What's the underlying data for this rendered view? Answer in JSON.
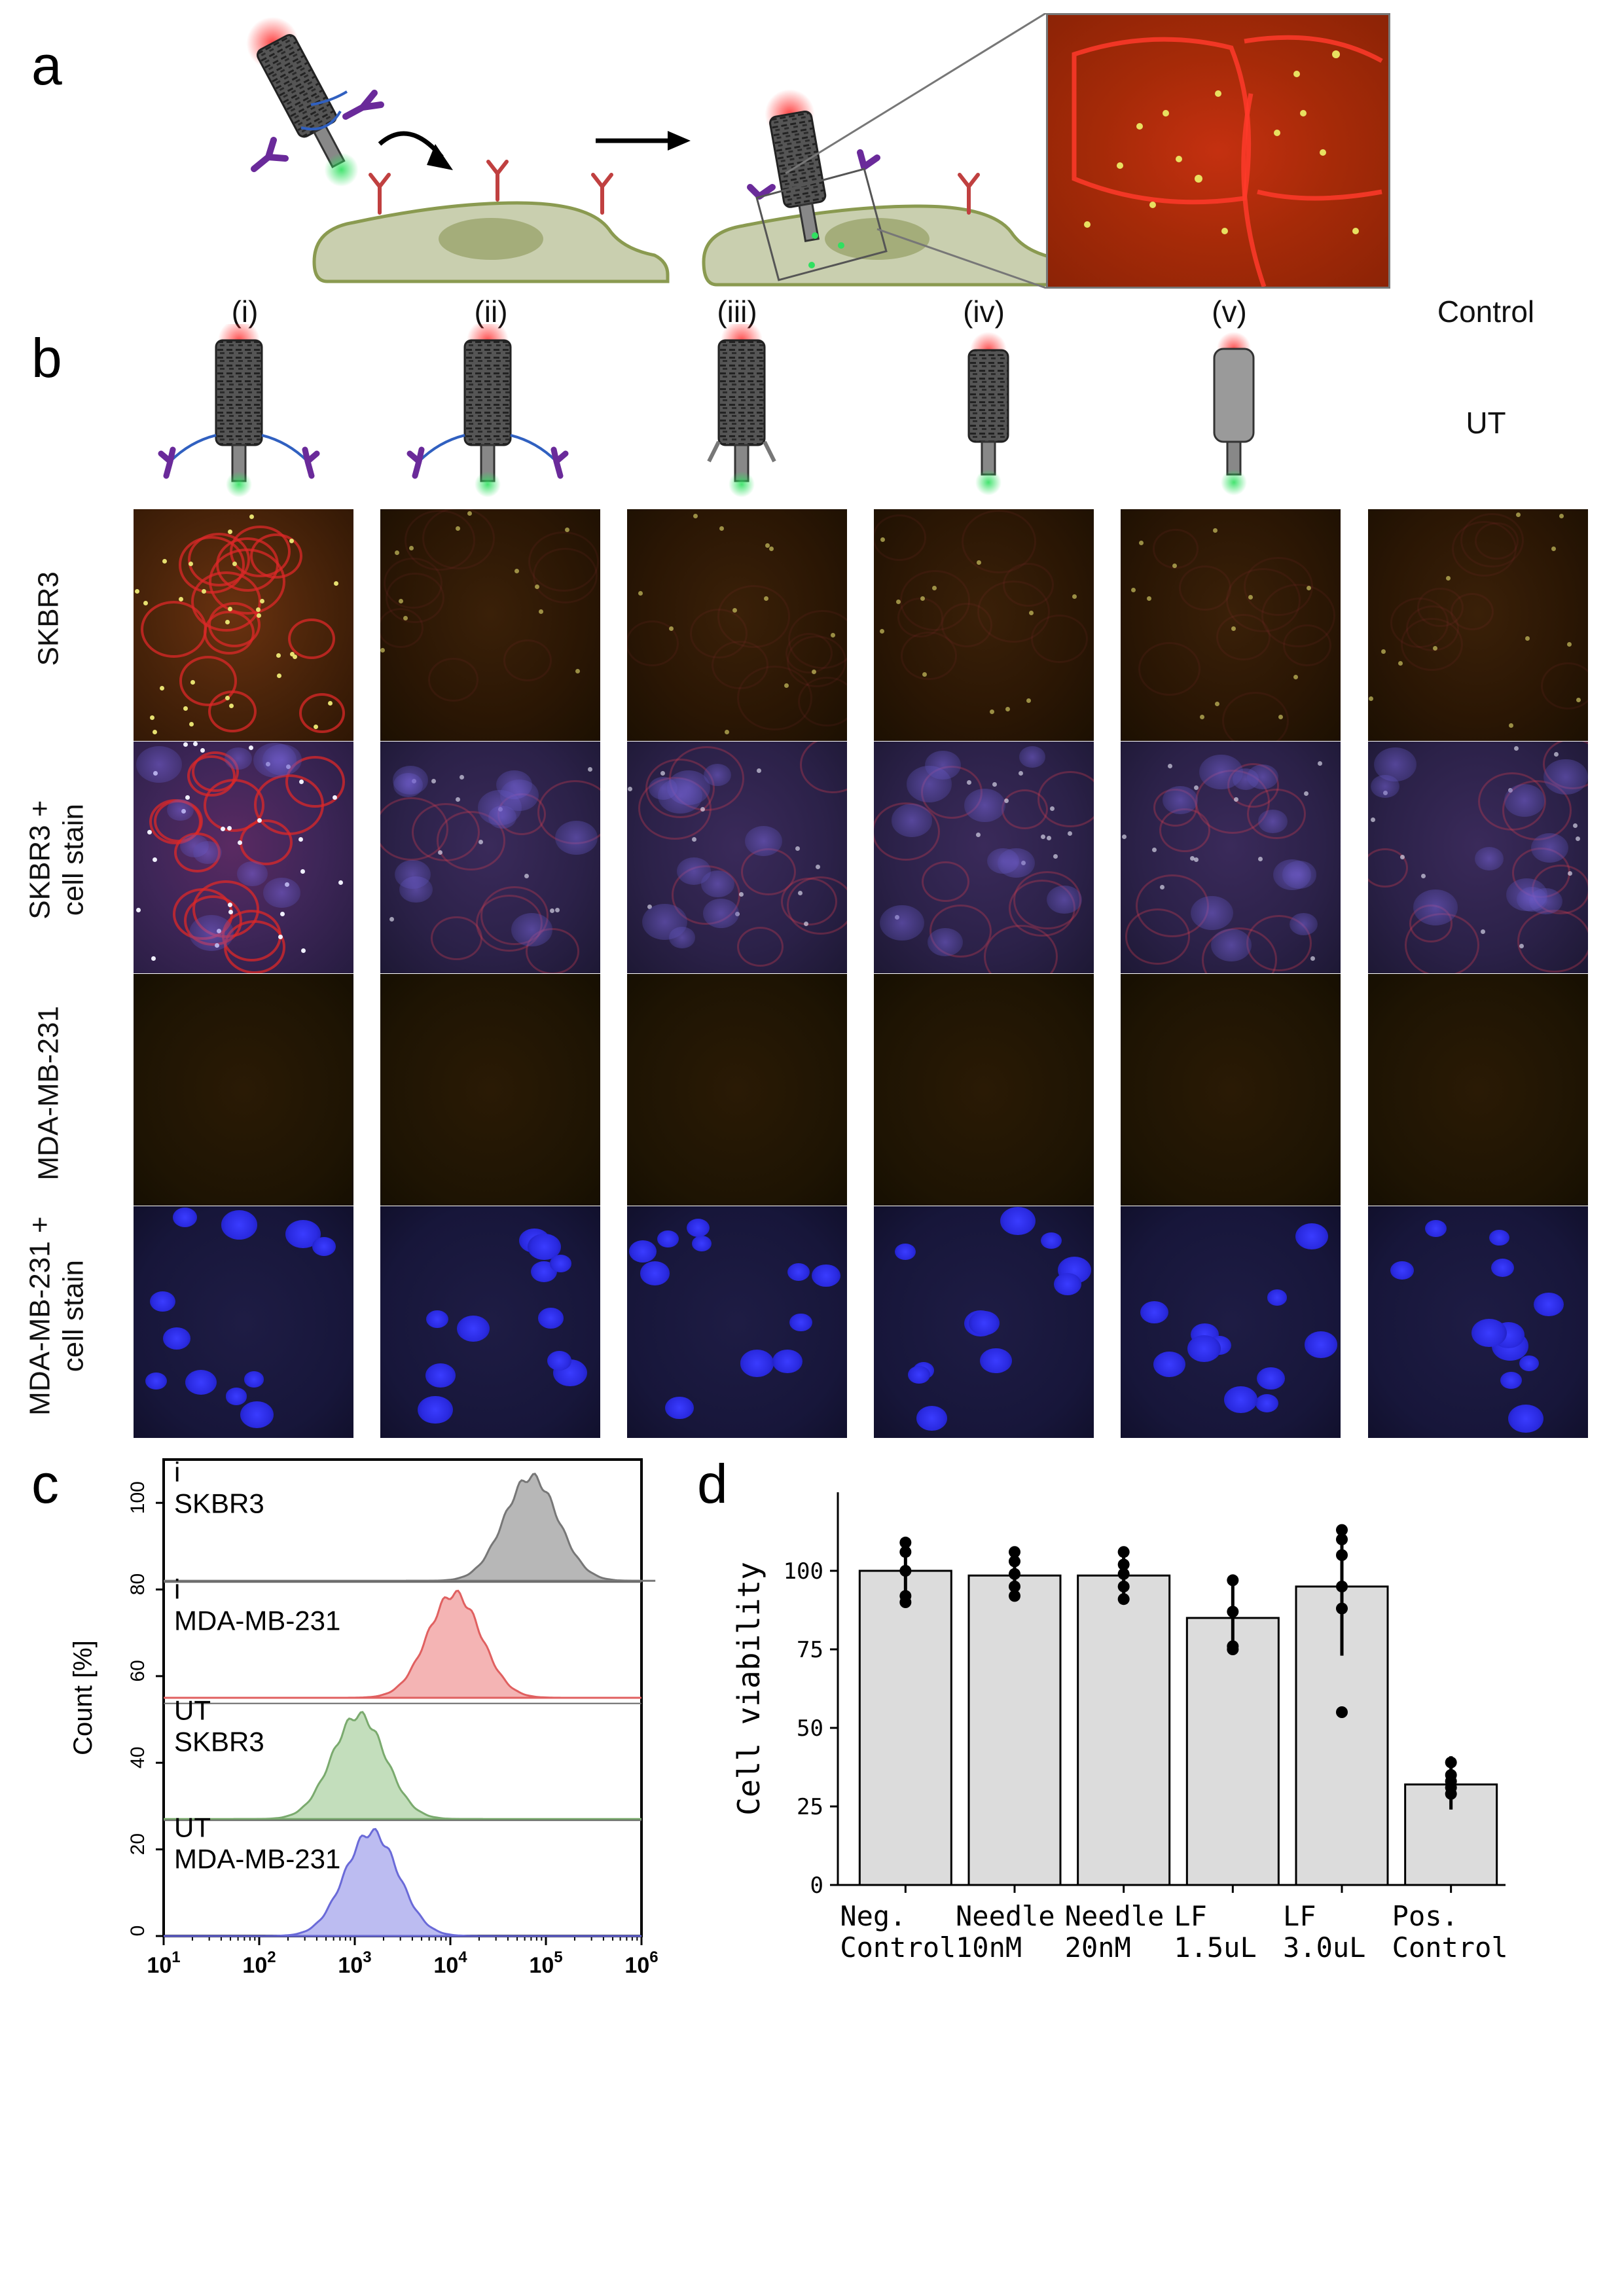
{
  "panel_letters": {
    "a": "a",
    "b": "b",
    "c": "c",
    "d": "d"
  },
  "panel_b": {
    "columns": [
      "(i)",
      "(ii)",
      "(iii)",
      "(iv)",
      "(v)",
      "Control"
    ],
    "control_sublabel": "UT",
    "rows": [
      "SKBR3",
      "SKBR3 + cell stain",
      "MDA-MB-231",
      "MDA-MB-231 + cell stain"
    ],
    "row_label_lines": [
      [
        "SKBR3"
      ],
      [
        "SKBR3 +",
        "cell stain"
      ],
      [
        "MDA-MB-231"
      ],
      [
        "MDA-MB-231 +",
        "cell stain"
      ]
    ]
  },
  "chart_data": [
    {
      "type": "area",
      "panel": "c",
      "ylabel": "Count [%]",
      "x_scale": "log",
      "x_tick_labels": [
        "10^1",
        "10^2",
        "10^3",
        "10^4",
        "10^5",
        "10^6"
      ],
      "xlim": [
        10,
        1000000
      ],
      "y_ticks": [
        0,
        20,
        40,
        60,
        80,
        100
      ],
      "series": [
        {
          "name": "i SKBR3",
          "label_lines": [
            "i",
            "SKBR3"
          ],
          "peak_x": 70000,
          "offset": 82,
          "color": "#aaaaaa",
          "stroke": "#777777"
        },
        {
          "name": "i MDA-MB-231",
          "label_lines": [
            "i",
            "MDA-MB-231"
          ],
          "peak_x": 11000,
          "offset": 55,
          "color": "#f2a7a7",
          "stroke": "#e06060"
        },
        {
          "name": "UT SKBR3",
          "label_lines": [
            "UT",
            "SKBR3"
          ],
          "peak_x": 1100,
          "offset": 27,
          "color": "#b8d8b0",
          "stroke": "#7aaa6e"
        },
        {
          "name": "UT MDA-MB-231",
          "label_lines": [
            "UT",
            "MDA-MB-231"
          ],
          "peak_x": 1500,
          "offset": 0,
          "color": "#b0b0ee",
          "stroke": "#6a6ad8"
        }
      ]
    },
    {
      "type": "bar",
      "panel": "d",
      "ylabel": "Cell viability",
      "ylim": [
        0,
        125
      ],
      "y_ticks": [
        0,
        25,
        50,
        75,
        100
      ],
      "categories": [
        "Neg. Control",
        "Needle 10nM",
        "Needle 20nM",
        "LF 1.5uL",
        "LF 3.0uL",
        "Pos. Control"
      ],
      "category_lines": [
        [
          "Neg.",
          "Control"
        ],
        [
          "Needle",
          "10nM"
        ],
        [
          "Needle",
          "20nM"
        ],
        [
          "LF",
          "1.5uL"
        ],
        [
          "LF",
          "3.0uL"
        ],
        [
          "Pos.",
          "Control"
        ]
      ],
      "values": [
        100,
        98.5,
        98.5,
        85,
        95,
        32
      ],
      "error_low": [
        90,
        92,
        92,
        75,
        73,
        24
      ],
      "error_high": [
        109,
        106,
        105,
        96,
        112,
        41
      ],
      "points": [
        [
          109,
          106,
          100,
          92,
          90
        ],
        [
          106,
          103,
          99,
          95,
          92
        ],
        [
          106,
          102,
          99,
          95,
          91
        ],
        [
          97,
          87,
          76,
          75
        ],
        [
          113,
          110,
          105,
          95,
          88,
          55
        ],
        [
          39,
          35,
          33,
          31,
          29
        ]
      ],
      "bar_color": "#dcdcdc"
    }
  ]
}
